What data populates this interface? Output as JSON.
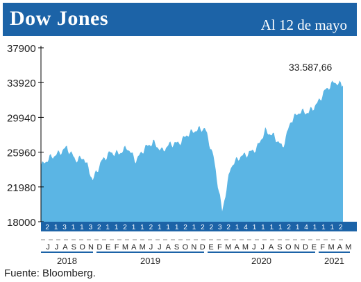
{
  "header": {
    "title": "Dow Jones",
    "date": "Al 12 de mayo"
  },
  "source": "Fuente: Bloomberg.",
  "colors": {
    "header": "#1c63a7",
    "area": "#5bb5e4",
    "axis_band": "#1c63a7"
  },
  "chart_data": {
    "type": "area",
    "title": "Dow Jones",
    "ylim": [
      18000,
      37900
    ],
    "yticks": [
      "37900",
      "33920",
      "29940",
      "25960",
      "21980",
      "18000"
    ],
    "grid": false,
    "annotation": "33.587,66",
    "x_day_labels": [
      "2",
      "1",
      "3",
      "1",
      "1",
      "3",
      "2",
      "1",
      "1",
      "2",
      "1",
      "1",
      "2",
      "1",
      "1",
      "1",
      "2",
      "1",
      "2",
      "2",
      "3",
      "2",
      "1",
      "4",
      "1",
      "1",
      "1",
      "1",
      "2",
      "1",
      "4",
      "1",
      "1",
      "1",
      "2"
    ],
    "x_month_labels": [
      "J",
      "J",
      "A",
      "S",
      "O",
      "N",
      "D",
      "E",
      "F",
      "M",
      "A",
      "M",
      "J",
      "J",
      "A",
      "S",
      "O",
      "N",
      "D",
      "E",
      "F",
      "M",
      "A",
      "M",
      "J",
      "J",
      "A",
      "S",
      "O",
      "N",
      "D",
      "E",
      "F",
      "M",
      "A",
      "M"
    ],
    "years": [
      "2018",
      "2019",
      "2020",
      "2021"
    ],
    "series": [
      {
        "x": [
          "2018-06",
          "2018-07",
          "2018-08",
          "2018-09",
          "2018-10",
          "2018-11",
          "2018-12",
          "2019-01",
          "2019-02",
          "2019-03",
          "2019-04",
          "2019-05",
          "2019-06",
          "2019-07",
          "2019-08",
          "2019-09",
          "2019-10",
          "2019-11",
          "2019-12",
          "2020-01",
          "2020-02",
          "2020-03",
          "2020-04",
          "2020-05",
          "2020-06",
          "2020-07",
          "2020-08",
          "2020-09",
          "2020-10",
          "2020-11",
          "2020-12",
          "2021-01",
          "2021-02",
          "2021-03",
          "2021-04",
          "2021-05"
        ],
        "values": [
          24400,
          25300,
          25800,
          26500,
          25100,
          25300,
          22800,
          24900,
          25900,
          25800,
          26500,
          25000,
          26400,
          27100,
          26100,
          26900,
          27000,
          28000,
          28500,
          28700,
          25400,
          19200,
          24300,
          25400,
          25800,
          26400,
          28400,
          27800,
          26500,
          29600,
          30600,
          30500,
          31500,
          33100,
          34000,
          33587.66
        ]
      }
    ]
  }
}
